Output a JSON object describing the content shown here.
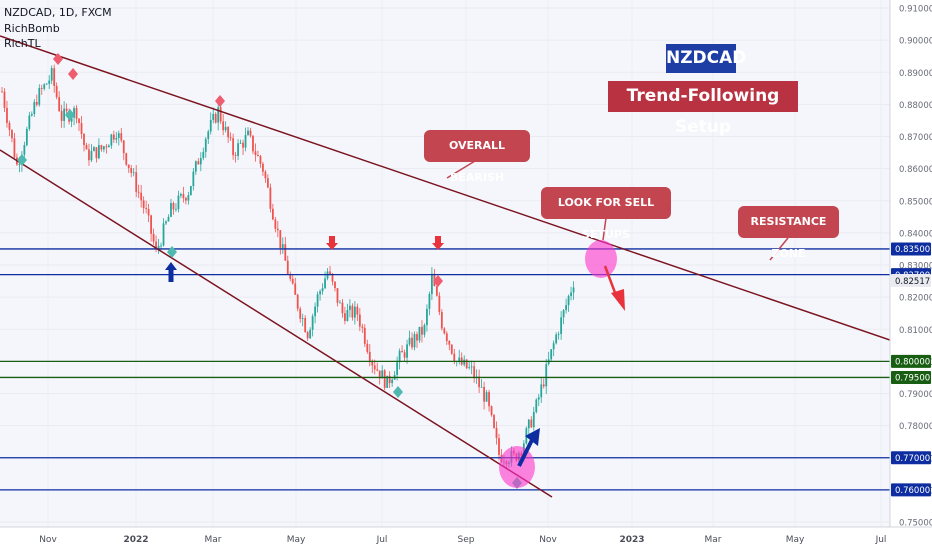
{
  "header": {
    "symbol_line": "NZDCAD, 1D, FXCM",
    "indicator_1": "RichBomb",
    "indicator_2": "RichTL"
  },
  "annotations": {
    "title": "NZDCAD",
    "subtitle": "Trend-Following Setup",
    "overall": "OVERALL BEARISH",
    "sell": "LOOK FOR SELL SETUPS",
    "resistance": "RESISTANCE ZONE"
  },
  "colors": {
    "background": "#f5f6fb",
    "up": "#26a69a",
    "down": "#ef5350",
    "trendline": "#7b1420",
    "blue_level": "#0d2da1",
    "green_level": "#175e13",
    "label_red": "#c2454f",
    "title_blue": "#1e3ea6",
    "magenta": "#ff33cc"
  },
  "chart_data": {
    "type": "candlestick",
    "title": "",
    "ylim": [
      0.75,
      0.91
    ],
    "x_ticks": [
      "Nov",
      "2022",
      "Mar",
      "May",
      "Jul",
      "Sep",
      "Nov",
      "2023",
      "Mar",
      "May",
      "Jul"
    ],
    "y_ticks": [
      "0.91000",
      "0.90000",
      "0.89000",
      "0.88000",
      "0.87000",
      "0.86000",
      "0.85000",
      "0.84000",
      "0.83000",
      "0.82000",
      "0.81000",
      "0.80000",
      "0.79000",
      "0.78000",
      "0.77000",
      "0.76000",
      "0.75000"
    ],
    "current_price": "0.82517",
    "levels": [
      {
        "label": "0.83500",
        "value": 0.835,
        "color": "blue"
      },
      {
        "label": "0.82700",
        "value": 0.827,
        "color": "blue"
      },
      {
        "label": "0.80000",
        "value": 0.8,
        "color": "green"
      },
      {
        "label": "0.79500",
        "value": 0.795,
        "color": "green"
      },
      {
        "label": "0.77000",
        "value": 0.77,
        "color": "blue"
      },
      {
        "label": "0.76000",
        "value": 0.76,
        "color": "blue"
      }
    ],
    "close_path": [
      {
        "t": 0,
        "p": 0.884
      },
      {
        "t": 6,
        "p": 0.861
      },
      {
        "t": 14,
        "p": 0.882
      },
      {
        "t": 20,
        "p": 0.889
      },
      {
        "t": 24,
        "p": 0.876
      },
      {
        "t": 30,
        "p": 0.878
      },
      {
        "t": 34,
        "p": 0.864
      },
      {
        "t": 40,
        "p": 0.866
      },
      {
        "t": 46,
        "p": 0.872
      },
      {
        "t": 52,
        "p": 0.859
      },
      {
        "t": 58,
        "p": 0.846
      },
      {
        "t": 62,
        "p": 0.834
      },
      {
        "t": 68,
        "p": 0.847
      },
      {
        "t": 75,
        "p": 0.853
      },
      {
        "t": 82,
        "p": 0.87
      },
      {
        "t": 87,
        "p": 0.878
      },
      {
        "t": 93,
        "p": 0.865
      },
      {
        "t": 99,
        "p": 0.87
      },
      {
        "t": 105,
        "p": 0.86
      },
      {
        "t": 111,
        "p": 0.84
      },
      {
        "t": 117,
        "p": 0.822
      },
      {
        "t": 123,
        "p": 0.809
      },
      {
        "t": 127,
        "p": 0.82
      },
      {
        "t": 131,
        "p": 0.828
      },
      {
        "t": 137,
        "p": 0.815
      },
      {
        "t": 143,
        "p": 0.815
      },
      {
        "t": 149,
        "p": 0.8
      },
      {
        "t": 155,
        "p": 0.793
      },
      {
        "t": 160,
        "p": 0.801
      },
      {
        "t": 166,
        "p": 0.807
      },
      {
        "t": 170,
        "p": 0.81
      },
      {
        "t": 173,
        "p": 0.826
      },
      {
        "t": 177,
        "p": 0.812
      },
      {
        "t": 183,
        "p": 0.8
      },
      {
        "t": 189,
        "p": 0.797
      },
      {
        "t": 195,
        "p": 0.788
      },
      {
        "t": 200,
        "p": 0.771
      },
      {
        "t": 206,
        "p": 0.77
      },
      {
        "t": 209,
        "p": 0.773
      },
      {
        "t": 215,
        "p": 0.786
      },
      {
        "t": 219,
        "p": 0.797
      },
      {
        "t": 223,
        "p": 0.808
      },
      {
        "t": 226,
        "p": 0.815
      },
      {
        "t": 230,
        "p": 0.825
      }
    ],
    "price_axis_labels_note": ""
  }
}
